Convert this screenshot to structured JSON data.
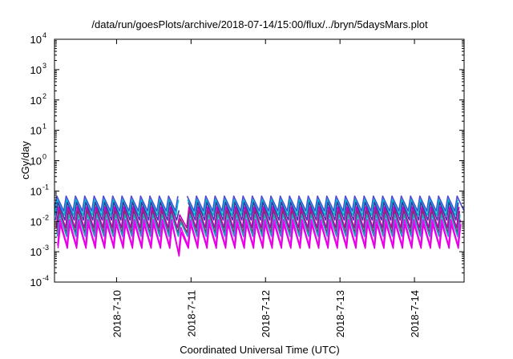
{
  "chart_data": {
    "type": "line",
    "title": "/data/run/goesPlots/archive/2018-07-14/15:00/flux/../bryn/5daysMars.plot",
    "xlabel": "Coordinated Universal Time (UTC)",
    "ylabel": "cGy/day",
    "x_range": [
      "2018-07-09T04:00",
      "2018-07-14T16:00"
    ],
    "x_ticks": [
      "2018-7-10",
      "2018-7-11",
      "2018-7-12",
      "2018-7-13",
      "2018-7-14"
    ],
    "y_scale": "log",
    "ylim": [
      0.0001,
      10000
    ],
    "y_ticks": [
      {
        "value": 0.0001,
        "base": "10",
        "exp": "-4"
      },
      {
        "value": 0.001,
        "base": "10",
        "exp": "-3"
      },
      {
        "value": 0.01,
        "base": "10",
        "exp": "-2"
      },
      {
        "value": 0.1,
        "base": "10",
        "exp": "-1"
      },
      {
        "value": 1,
        "base": "10",
        "exp": "0"
      },
      {
        "value": 10,
        "base": "10",
        "exp": "1"
      },
      {
        "value": 100,
        "base": "10",
        "exp": "2"
      },
      {
        "value": 1000,
        "base": "10",
        "exp": "3"
      },
      {
        "value": 10000,
        "base": "10",
        "exp": "4"
      }
    ],
    "grid": false,
    "legend": "none",
    "cycle_hours": 3,
    "gap": {
      "start": "2018-07-10T21:30",
      "end": "2018-07-10T22:30"
    },
    "dip": {
      "start": "2018-07-10T20:00",
      "end": "2018-07-10T22:30",
      "factor": 0.55
    },
    "series": [
      {
        "color": "#4b4bd6",
        "peak": 0.068,
        "trough": 0.022,
        "phase": 0.0
      },
      {
        "color": "#00bcd0",
        "peak": 0.052,
        "trough": 0.016,
        "phase": 0.05
      },
      {
        "color": "#3a3aa8",
        "peak": 0.042,
        "trough": 0.011,
        "phase": 0.12
      },
      {
        "color": "#c000c0",
        "peak": 0.03,
        "trough": 0.0062,
        "phase": 0.2
      },
      {
        "color": "#8a2a6a",
        "peak": 0.022,
        "trough": 0.0042,
        "phase": 0.26
      },
      {
        "color": "#1aa0c0",
        "peak": 0.017,
        "trough": 0.0032,
        "phase": 0.3
      },
      {
        "color": "#ff00ff",
        "peak": 0.0115,
        "trough": 0.0016,
        "phase": 0.34
      },
      {
        "color": "#e000e0",
        "peak": 0.008,
        "trough": 0.0013,
        "phase": 0.38
      }
    ]
  }
}
